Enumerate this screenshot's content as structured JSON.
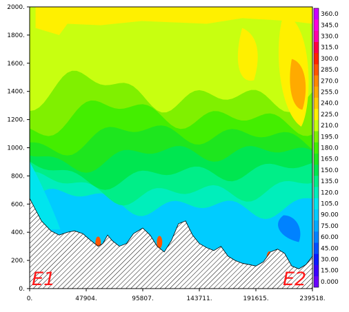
{
  "chart_data": {
    "type": "heatmap",
    "title": "",
    "xlabel": "",
    "ylabel": "",
    "xlim": [
      0,
      239518
    ],
    "ylim": [
      0,
      2000
    ],
    "x_tick_labels": [
      "0.",
      "47904.",
      "95807.",
      "143711.",
      "191615.",
      "239518."
    ],
    "x_ticks": [
      0,
      47904,
      95807,
      143711,
      191615,
      239518
    ],
    "y_tick_labels": [
      "0.",
      "200.",
      "400.",
      "600.",
      "800.",
      "1000.",
      "1200.",
      "1400.",
      "1600.",
      "1800.",
      "2000."
    ],
    "y_ticks": [
      0,
      200,
      400,
      600,
      800,
      1000,
      1200,
      1400,
      1600,
      1800,
      2000
    ],
    "endpoint_labels": [
      "E1",
      "E2"
    ],
    "colorbar": {
      "levels": [
        0,
        15,
        30,
        45,
        60,
        75,
        90,
        105,
        120,
        135,
        150,
        165,
        180,
        195,
        210,
        225,
        240,
        255,
        270,
        285,
        300,
        315,
        330,
        345,
        360
      ],
      "labels": [
        "0.000",
        "15.00",
        "30.00",
        "45.00",
        "60.00",
        "75.00",
        "90.00",
        "105.0",
        "120.0",
        "135.0",
        "150.0",
        "165.0",
        "180.0",
        "195.0",
        "210.0",
        "225.0",
        "240.0",
        "255.0",
        "270.0",
        "285.0",
        "300.0",
        "315.0",
        "330.0",
        "345.0",
        "360.0"
      ],
      "colors": [
        "#6a00ff",
        "#3a00ff",
        "#0a1aff",
        "#0050ff",
        "#0082ff",
        "#00aaff",
        "#00ccff",
        "#00e5ee",
        "#00eebb",
        "#00ee88",
        "#00e650",
        "#1ee61e",
        "#44ee00",
        "#80f000",
        "#c8ff10",
        "#fff000",
        "#ffcc00",
        "#ffaa00",
        "#ff8800",
        "#ff5500",
        "#ff2200",
        "#ff0044",
        "#ff00aa",
        "#ff00dd",
        "#cc00ff"
      ]
    },
    "terrain_profile": {
      "x": [
        0,
        5000,
        10000,
        18000,
        25000,
        32000,
        38000,
        45000,
        52000,
        58000,
        62000,
        66000,
        70000,
        76000,
        82000,
        88000,
        95807,
        102000,
        108000,
        114000,
        120000,
        126000,
        132000,
        138000,
        143711,
        150000,
        156000,
        162000,
        168000,
        174000,
        180000,
        186000,
        191615,
        198000,
        204000,
        210000,
        216000,
        222000,
        228000,
        234000,
        239518
      ],
      "y": [
        640,
        560,
        480,
        410,
        380,
        400,
        410,
        390,
        340,
        300,
        320,
        380,
        340,
        300,
        320,
        390,
        430,
        380,
        300,
        260,
        340,
        460,
        480,
        380,
        320,
        290,
        270,
        300,
        230,
        200,
        180,
        170,
        160,
        190,
        260,
        280,
        250,
        160,
        140,
        170,
        230
      ]
    },
    "contour_bands": [
      {
        "level": 120,
        "color": "#00eebb",
        "base_height": 600,
        "amplitude": 120
      },
      {
        "level": 135,
        "color": "#00ee88",
        "base_height": 700,
        "amplitude": 120
      },
      {
        "level": 150,
        "color": "#00e650",
        "base_height": 820,
        "amplitude": 110
      },
      {
        "level": 165,
        "color": "#1ee61e",
        "base_height": 950,
        "amplitude": 110
      },
      {
        "level": 180,
        "color": "#44ee00",
        "base_height": 1080,
        "amplitude": 120
      },
      {
        "level": 195,
        "color": "#80f000",
        "base_height": 1220,
        "amplitude": 140
      },
      {
        "level": 210,
        "color": "#c8ff10",
        "base_height": 1380,
        "amplitude": 160
      }
    ]
  }
}
